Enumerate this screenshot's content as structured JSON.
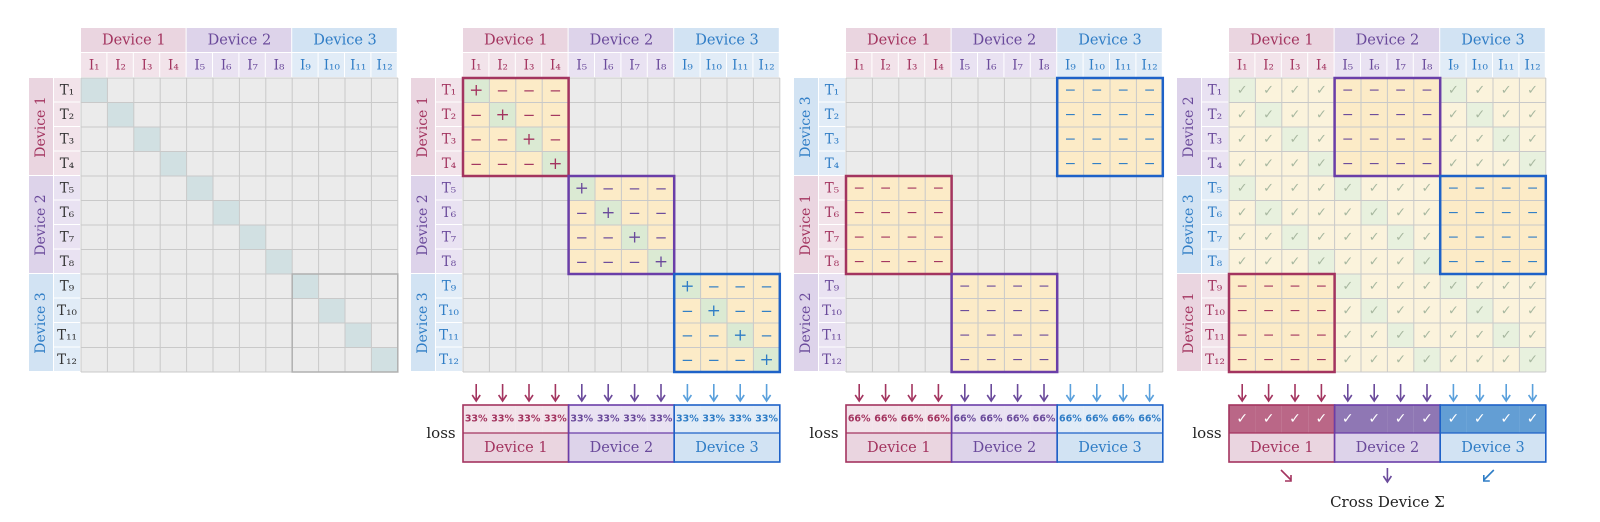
{
  "colors": {
    "device1": "#a3345f",
    "device2": "#6a4a9b",
    "device3": "#2f7dc6",
    "device1_bg": "#ead5e0",
    "device2_bg": "#ddd3ea",
    "device3_bg": "#d2e3f3",
    "device1_light": "#f2e3ea",
    "device2_light": "#e9e2f2",
    "device3_light": "#e1ecf7",
    "device1_box": "#a3345f",
    "device2_box": "#6a3ea8",
    "device3_box": "#1e62c8",
    "grid_bg": "#ebebeb",
    "grid_line": "#c9c9c9",
    "diag": "#d1e0e2",
    "neg_bg": "#fcebc7",
    "pos_bg": "#dbead3",
    "check_bg": "#fbf3dc",
    "check_green": "#e8f1de",
    "check_color": "#a8b8a0"
  },
  "devices": [
    "Device 1",
    "Device 2",
    "Device 3"
  ],
  "img_labels": [
    "I₁",
    "I₂",
    "I₃",
    "I₄",
    "I₅",
    "I₆",
    "I₇",
    "I₈",
    "I₉",
    "I₁₀",
    "I₁₁",
    "I₁₂"
  ],
  "txt_labels": [
    "T₁",
    "T₂",
    "T₃",
    "T₄",
    "T₅",
    "T₆",
    "T₇",
    "T₈",
    "T₉",
    "T₁₀",
    "T₁₁",
    "T₁₂"
  ],
  "symbols": {
    "pos": "+",
    "neg": "−",
    "check": "✓"
  },
  "panel2": {
    "loss_label": "loss",
    "loss_value": "33%"
  },
  "panel3": {
    "loss_label": "loss",
    "loss_value": "66%",
    "row_devices": [
      "Device 3",
      "Device 1",
      "Device 2"
    ]
  },
  "panel4": {
    "loss_label": "loss",
    "loss_value": "✓",
    "row_devices": [
      "Device 2",
      "Device 3",
      "Device 1"
    ],
    "cross_label": "Cross Device Σ"
  }
}
